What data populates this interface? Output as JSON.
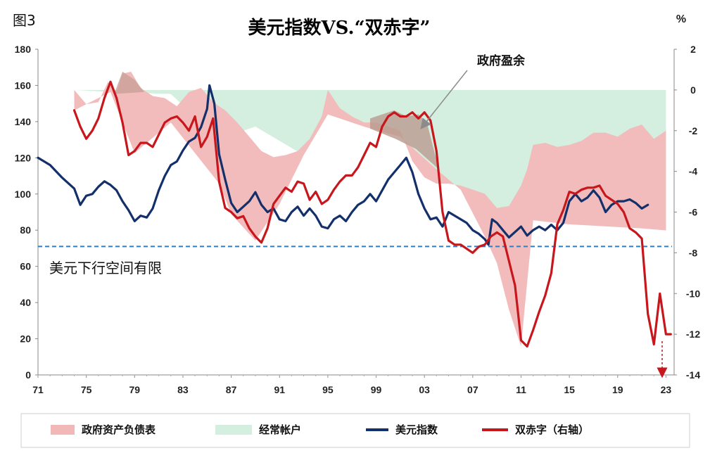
{
  "figure_label": "图3",
  "chart_data": {
    "type": "line",
    "title": "美元指数VS.“双赤字”",
    "right_axis_unit": "%",
    "x_ticks": [
      "71",
      "75",
      "79",
      "83",
      "87",
      "91",
      "95",
      "99",
      "03",
      "07",
      "11",
      "15",
      "19",
      "23"
    ],
    "xlim": [
      1971,
      2023.5
    ],
    "y_left": {
      "ticks": [
        "0",
        "20",
        "40",
        "60",
        "80",
        "100",
        "120",
        "140",
        "160",
        "180"
      ],
      "ylim": [
        0,
        180
      ]
    },
    "y_right": {
      "ticks": [
        "2",
        "0",
        "-2",
        "-4",
        "-6",
        "-8",
        "-10",
        "-12",
        "-14"
      ],
      "ylim": [
        -14,
        2
      ]
    },
    "reference_line": {
      "value": 71,
      "axis": "left",
      "label": "美元下行空间有限",
      "color": "#2f7fc1"
    },
    "annotation": {
      "label": "政府盈余",
      "x": 2003,
      "y": -1.9
    },
    "series": [
      {
        "name": "政府资产负债表",
        "kind": "area",
        "axis": "right",
        "color": "#f2b8b8",
        "x": [
          1974.0,
          1975.0,
          1976.0,
          1976.8,
          1977.5,
          1978.0,
          1978.7,
          1979.5,
          1980.5,
          1981.5,
          1982.5,
          1983.5,
          1984.5,
          1985.5,
          1986.5,
          1987.5,
          1988.5,
          1989.5,
          1990.5,
          1991.5,
          1992.5,
          1993.5,
          1994.5,
          1995.0,
          1996.0,
          1997.0,
          1998.0,
          1999.0,
          2000.0,
          2001.0,
          2002.0,
          2003.0,
          2004.0,
          2005.0,
          2006.0,
          2007.0,
          2008.0,
          2009.0,
          2010.0,
          2011.0,
          2011.5,
          2012.0,
          2013.0,
          2014.0,
          2015.0,
          2016.0,
          2017.0,
          2018.0,
          2019.0,
          2020.0,
          2021.0,
          2022.0,
          2023.0
        ],
        "y": [
          -0.0,
          -0.7,
          -0.6,
          0.4,
          -0.1,
          0.8,
          0.9,
          0.1,
          -0.3,
          -0.4,
          -0.8,
          -0.1,
          0.1,
          -0.6,
          -1.0,
          -1.6,
          -2.3,
          -3.0,
          -3.3,
          -3.2,
          -3.0,
          -2.4,
          -1.3,
          0.0,
          -0.9,
          -1.3,
          -1.6,
          -1.6,
          -1.8,
          -2.0,
          -3.5,
          -4.3,
          -4.6,
          -4.6,
          -4.7,
          -4.9,
          -5.1,
          -5.8,
          -5.7,
          -4.7,
          -3.9,
          -2.7,
          -2.6,
          -2.8,
          -2.7,
          -2.5,
          -2.1,
          -2.1,
          -2.3,
          -1.9,
          -1.7,
          -2.4,
          -2.0
        ]
      },
      {
        "name": "经常帐户",
        "kind": "area",
        "axis": "right",
        "color": "#d4efdf",
        "x": [
          1974.0,
          1975.0,
          1976.0,
          1977.0,
          1978.0,
          1979.0,
          1980.0,
          1981.0,
          1982.0,
          1983.0,
          1984.0,
          1985.0,
          1986.0,
          1987.0,
          1988.0,
          1989.0,
          1990.0,
          1991.0,
          1992.0,
          1993.0,
          1994.0,
          1995.0,
          1996.0,
          1997.0,
          1998.0,
          1999.0,
          2000.0,
          2001.0,
          2002.0,
          2003.0,
          2004.0,
          2005.0,
          2006.0,
          2007.0,
          2008.0,
          2009.0,
          2010.0,
          2011.0,
          2012.0,
          2013.0,
          2014.0,
          2015.0,
          2016.0,
          2017.0,
          2018.0,
          2019.0,
          2020.0,
          2021.0,
          2022.0,
          2023.0
        ],
        "y": [
          0,
          0,
          0,
          0,
          0,
          0,
          0,
          0,
          0,
          0,
          0,
          0,
          0,
          0,
          0,
          0,
          0,
          0,
          0,
          0,
          0,
          0,
          0,
          0,
          0,
          0,
          0,
          0,
          0,
          0,
          0,
          0,
          0,
          0,
          0,
          0,
          0,
          0,
          0,
          0,
          0,
          0,
          0,
          0,
          0,
          0,
          0,
          0,
          0,
          0
        ]
      },
      {
        "name": "美元指数",
        "kind": "line",
        "axis": "left",
        "color": "#13306b",
        "x": [
          1971.0,
          1972.0,
          1973.0,
          1974.0,
          1974.5,
          1975.0,
          1975.5,
          1976.0,
          1976.5,
          1977.0,
          1977.5,
          1978.0,
          1978.5,
          1979.0,
          1979.5,
          1980.0,
          1980.5,
          1981.0,
          1981.5,
          1982.0,
          1982.5,
          1983.0,
          1983.5,
          1984.0,
          1984.5,
          1985.0,
          1985.2,
          1985.6,
          1986.0,
          1986.5,
          1987.0,
          1987.5,
          1988.0,
          1988.5,
          1989.0,
          1989.5,
          1990.0,
          1990.5,
          1991.0,
          1991.5,
          1992.0,
          1992.5,
          1993.0,
          1993.5,
          1994.0,
          1994.5,
          1995.0,
          1995.5,
          1996.0,
          1996.5,
          1997.0,
          1997.5,
          1998.0,
          1998.5,
          1999.0,
          1999.5,
          2000.0,
          2000.5,
          2001.0,
          2001.5,
          2002.0,
          2002.5,
          2003.0,
          2003.5,
          2004.0,
          2004.5,
          2005.0,
          2005.5,
          2006.0,
          2006.5,
          2007.0,
          2007.5,
          2008.0,
          2008.3,
          2008.6,
          2009.0,
          2009.5,
          2010.0,
          2010.5,
          2011.0,
          2011.5,
          2012.0,
          2012.5,
          2013.0,
          2013.5,
          2014.0,
          2014.5,
          2015.0,
          2015.5,
          2016.0,
          2016.5,
          2017.0,
          2017.5,
          2018.0,
          2018.5,
          2019.0,
          2019.5,
          2020.0,
          2020.5,
          2021.0,
          2021.5
        ],
        "y": [
          120,
          116,
          109,
          103,
          94,
          99,
          100,
          104,
          107,
          105,
          102,
          96,
          91,
          85,
          88,
          87,
          92,
          102,
          110,
          116,
          118,
          124,
          129,
          131,
          137,
          147,
          160,
          150,
          122,
          108,
          95,
          90,
          93,
          96,
          101,
          94,
          90,
          92,
          86,
          85,
          90,
          93,
          88,
          92,
          88,
          82,
          81,
          86,
          88,
          85,
          90,
          94,
          96,
          100,
          96,
          102,
          108,
          112,
          116,
          120,
          112,
          100,
          92,
          86,
          87,
          82,
          90,
          88,
          86,
          84,
          80,
          78,
          75,
          72,
          86,
          84,
          80,
          76,
          79,
          82,
          77,
          80,
          82,
          80,
          83,
          80,
          84,
          96,
          100,
          96,
          98,
          102,
          98,
          90,
          94,
          96,
          96,
          97,
          95,
          92,
          94
        ]
      },
      {
        "name": "双赤字（右轴）",
        "kind": "line",
        "axis": "right",
        "color": "#c8161d",
        "x": [
          1974.0,
          1974.5,
          1975.0,
          1975.5,
          1976.0,
          1976.5,
          1977.0,
          1977.5,
          1978.0,
          1978.5,
          1979.0,
          1979.5,
          1980.0,
          1980.5,
          1981.0,
          1981.5,
          1982.0,
          1982.5,
          1983.0,
          1983.5,
          1984.0,
          1984.5,
          1985.0,
          1985.5,
          1986.0,
          1986.5,
          1987.0,
          1987.5,
          1988.0,
          1988.5,
          1989.0,
          1989.5,
          1990.0,
          1990.5,
          1991.0,
          1991.5,
          1992.0,
          1992.5,
          1993.0,
          1993.5,
          1994.0,
          1994.5,
          1995.0,
          1995.5,
          1996.0,
          1996.5,
          1997.0,
          1997.5,
          1998.0,
          1998.5,
          1999.0,
          1999.5,
          2000.0,
          2000.5,
          2001.0,
          2001.5,
          2002.0,
          2002.5,
          2003.0,
          2003.5,
          2004.0,
          2004.5,
          2005.0,
          2005.5,
          2006.0,
          2006.5,
          2007.0,
          2007.5,
          2008.0,
          2008.5,
          2009.0,
          2009.5,
          2010.0,
          2010.5,
          2011.0,
          2011.5,
          2012.0,
          2012.5,
          2013.0,
          2013.5,
          2014.0,
          2014.5,
          2015.0,
          2015.5,
          2016.0,
          2016.5,
          2017.0,
          2017.5,
          2018.0,
          2018.5,
          2019.0,
          2019.5,
          2020.0,
          2020.5,
          2021.0,
          2021.5,
          2022.0,
          2022.5,
          2023.0,
          2023.2,
          2023.4
        ],
        "y": [
          -1.0,
          -1.8,
          -2.4,
          -2.0,
          -1.4,
          -0.4,
          0.4,
          -0.4,
          -1.6,
          -3.2,
          -3.0,
          -2.6,
          -2.6,
          -2.8,
          -2.2,
          -1.6,
          -1.4,
          -1.3,
          -1.6,
          -2.0,
          -1.3,
          -2.8,
          -2.3,
          -1.4,
          -4.5,
          -5.8,
          -6.0,
          -6.3,
          -6.2,
          -6.8,
          -7.2,
          -7.5,
          -6.8,
          -5.6,
          -5.2,
          -4.8,
          -5.0,
          -4.5,
          -4.6,
          -5.4,
          -5.0,
          -5.6,
          -5.4,
          -4.9,
          -4.5,
          -4.2,
          -4.2,
          -3.8,
          -3.2,
          -2.6,
          -2.8,
          -1.8,
          -1.3,
          -1.1,
          -1.3,
          -1.3,
          -1.1,
          -1.4,
          -1.1,
          -1.5,
          -3.0,
          -6.0,
          -7.4,
          -7.6,
          -7.6,
          -7.8,
          -8.0,
          -7.7,
          -7.6,
          -7.2,
          -7.0,
          -7.2,
          -8.4,
          -9.6,
          -12.3,
          -12.6,
          -11.8,
          -10.9,
          -10.1,
          -9.0,
          -6.6,
          -5.9,
          -5.0,
          -5.1,
          -4.9,
          -4.8,
          -4.8,
          -4.7,
          -5.2,
          -5.4,
          -5.6,
          -6.0,
          -6.8,
          -7.0,
          -7.3,
          -11.0,
          -12.5,
          -10.0,
          -12.0,
          -12.0,
          -12.0
        ]
      }
    ],
    "legend_position": "bottom"
  }
}
